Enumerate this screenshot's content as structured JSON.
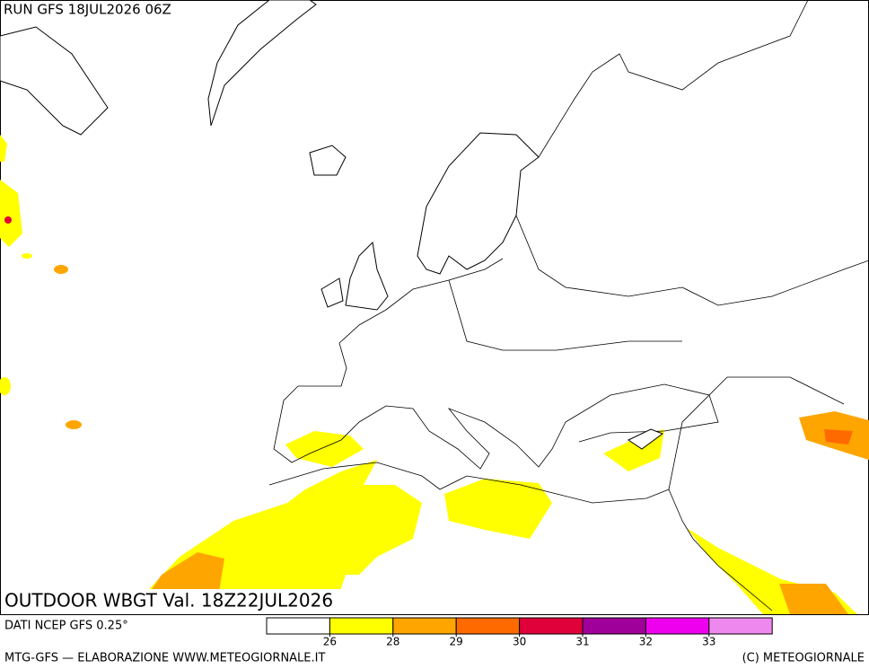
{
  "header": {
    "run": "RUN GFS 18JUL2026 06Z"
  },
  "map": {
    "title": "OUTDOOR WBGT Val. 18Z22JUL2026"
  },
  "legend": {
    "source": "DATI NCEP GFS 0.25°",
    "colors": [
      "#ffffff",
      "#ffff00",
      "#ffa500",
      "#ff6a00",
      "#e0003a",
      "#a00099",
      "#ee00ee",
      "#ee88ee"
    ],
    "ticks": [
      26,
      28,
      29,
      30,
      31,
      32,
      33
    ]
  },
  "footer": {
    "left": "MTG-GFS — ELABORAZIONE WWW.METEOGIORNALE.IT",
    "right": "(C) METEOGIORNALE"
  }
}
